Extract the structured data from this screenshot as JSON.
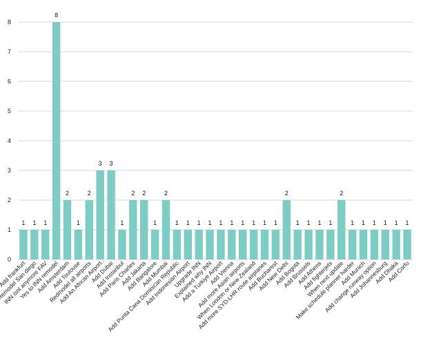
{
  "chart_data": {
    "type": "bar",
    "title": "",
    "xlabel": "",
    "ylabel": "",
    "ylim": [
      0,
      8
    ],
    "yticks": [
      0,
      1,
      2,
      3,
      4,
      5,
      6,
      7,
      8
    ],
    "grid": true,
    "bar_color": "#7ecdc4",
    "grid_color": "#d9d9d9",
    "categories": [
      "Add frankfurt",
      "Remodel San diego",
      "INN isnt anymore FAV",
      "Yes to INN remodel",
      "Add Amsterdam",
      "Add Toulouse",
      "Redmodel all airports",
      "Add An African Airport",
      "Add Dubai",
      "Add Instanbul",
      "Add Paris Charles",
      "Add Jakarta",
      "Add Bangalore",
      "Add Mumbai",
      "Add Punta Cana Dominican Republic",
      "Add Indonesian Airport",
      "Upgrade INN",
      "Explained why INN",
      "Add a Turkiye Airport",
      "Add Vienna",
      "Add more Asian airports",
      "When London or New Zealand",
      "Add more SYD-LHR route airplanes",
      "Add Bucharest",
      "Add New Delhi",
      "Add Bogota",
      "Add Brussels",
      "Add Athens",
      "Add fighterjets",
      "When next update",
      "Make schedule planner harder",
      "Add Munich",
      "Add change runway option",
      "Add Johannesburg",
      "Add Dhaka",
      "Add Corfu"
    ],
    "values": [
      1,
      1,
      1,
      8,
      2,
      1,
      2,
      3,
      3,
      1,
      2,
      2,
      1,
      2,
      1,
      1,
      1,
      1,
      1,
      1,
      1,
      1,
      1,
      1,
      2,
      1,
      1,
      1,
      1,
      2,
      1,
      1,
      1,
      1,
      1,
      1
    ]
  }
}
